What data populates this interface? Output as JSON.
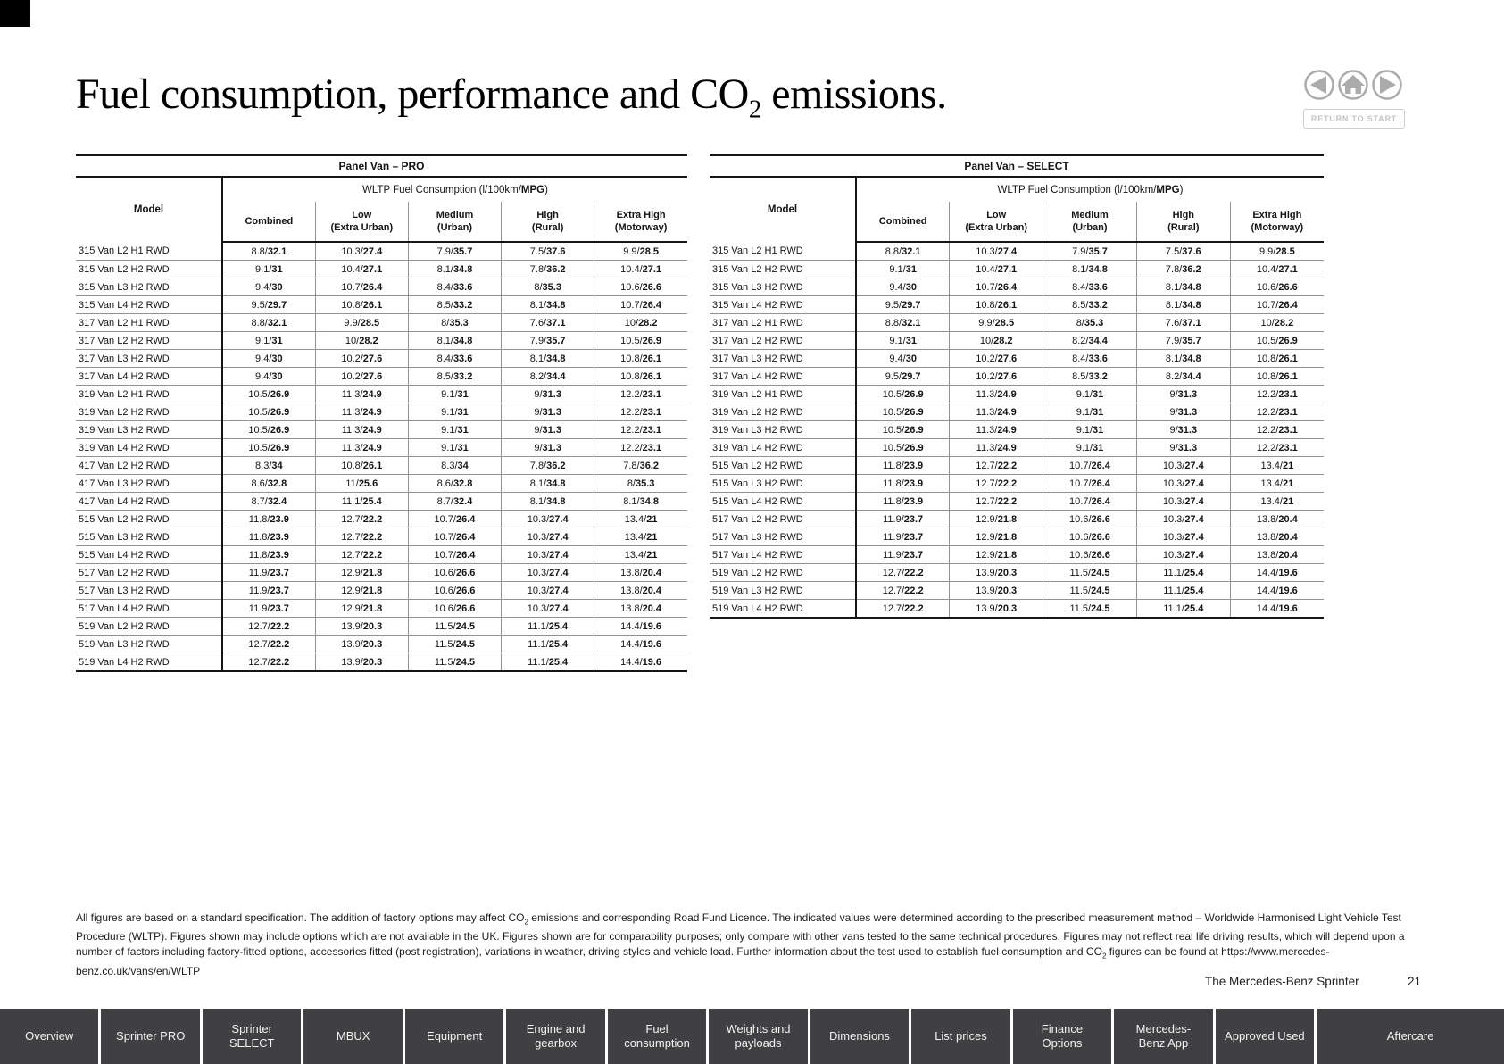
{
  "header": {
    "title": {
      "pre": "Fuel consumption, performance and CO",
      "sub": "2",
      "post": " emissions."
    }
  },
  "nav": {
    "buttons": [
      {
        "label": "back",
        "icon": "back-icon"
      },
      {
        "label": "home",
        "icon": "home-icon"
      },
      {
        "label": "forward",
        "icon": "forward-icon"
      }
    ],
    "return_button": "RETURN TO START",
    "icon_color": "#ababab"
  },
  "tables": [
    {
      "id": "pro",
      "title": "Panel Van – PRO",
      "group_header": {
        "pre": "WLTP Fuel Consumption (l/100km/",
        "bold": "MPG",
        "post": ")"
      },
      "columns": {
        "model": "Model",
        "values": [
          [
            "Combined"
          ],
          [
            "Low",
            "(Extra Urban)"
          ],
          [
            "Medium",
            "(Urban)"
          ],
          [
            "High",
            "(Rural)"
          ],
          [
            "Extra High",
            "(Motorway)"
          ]
        ]
      },
      "rows": [
        {
          "model": "315 Van L2 H1 RWD",
          "values": [
            "8.8/32.1",
            "10.3/27.4",
            "7.9/35.7",
            "7.5/37.6",
            "9.9/28.5"
          ]
        },
        {
          "model": "315 Van L2 H2 RWD",
          "values": [
            "9.1/31",
            "10.4/27.1",
            "8.1/34.8",
            "7.8/36.2",
            "10.4/27.1"
          ]
        },
        {
          "model": "315 Van L3 H2 RWD",
          "values": [
            "9.4/30",
            "10.7/26.4",
            "8.4/33.6",
            "8/35.3",
            "10.6/26.6"
          ]
        },
        {
          "model": "315 Van L4 H2 RWD",
          "values": [
            "9.5/29.7",
            "10.8/26.1",
            "8.5/33.2",
            "8.1/34.8",
            "10.7/26.4"
          ]
        },
        {
          "model": "317 Van L2 H1 RWD",
          "values": [
            "8.8/32.1",
            "9.9/28.5",
            "8/35.3",
            "7.6/37.1",
            "10/28.2"
          ]
        },
        {
          "model": "317 Van L2 H2 RWD",
          "values": [
            "9.1/31",
            "10/28.2",
            "8.1/34.8",
            "7.9/35.7",
            "10.5/26.9"
          ]
        },
        {
          "model": "317 Van L3 H2 RWD",
          "values": [
            "9.4/30",
            "10.2/27.6",
            "8.4/33.6",
            "8.1/34.8",
            "10.8/26.1"
          ]
        },
        {
          "model": "317 Van L4 H2 RWD",
          "values": [
            "9.4/30",
            "10.2/27.6",
            "8.5/33.2",
            "8.2/34.4",
            "10.8/26.1"
          ]
        },
        {
          "model": "319 Van L2 H1 RWD",
          "values": [
            "10.5/26.9",
            "11.3/24.9",
            "9.1/31",
            "9/31.3",
            "12.2/23.1"
          ]
        },
        {
          "model": "319 Van L2 H2 RWD",
          "values": [
            "10.5/26.9",
            "11.3/24.9",
            "9.1/31",
            "9/31.3",
            "12.2/23.1"
          ]
        },
        {
          "model": "319 Van L3 H2 RWD",
          "values": [
            "10.5/26.9",
            "11.3/24.9",
            "9.1/31",
            "9/31.3",
            "12.2/23.1"
          ]
        },
        {
          "model": "319 Van L4 H2 RWD",
          "values": [
            "10.5/26.9",
            "11.3/24.9",
            "9.1/31",
            "9/31.3",
            "12.2/23.1"
          ]
        },
        {
          "model": "417 Van L2 H2 RWD",
          "values": [
            "8.3/34",
            "10.8/26.1",
            "8.3/34",
            "7.8/36.2",
            "7.8/36.2"
          ]
        },
        {
          "model": "417 Van L3 H2 RWD",
          "values": [
            "8.6/32.8",
            "11/25.6",
            "8.6/32.8",
            "8.1/34.8",
            "8/35.3"
          ]
        },
        {
          "model": "417 Van L4 H2 RWD",
          "values": [
            "8.7/32.4",
            "11.1/25.4",
            "8.7/32.4",
            "8.1/34.8",
            "8.1/34.8"
          ]
        },
        {
          "model": "515 Van L2 H2 RWD",
          "values": [
            "11.8/23.9",
            "12.7/22.2",
            "10.7/26.4",
            "10.3/27.4",
            "13.4/21"
          ]
        },
        {
          "model": "515 Van L3 H2 RWD",
          "values": [
            "11.8/23.9",
            "12.7/22.2",
            "10.7/26.4",
            "10.3/27.4",
            "13.4/21"
          ]
        },
        {
          "model": "515 Van L4 H2 RWD",
          "values": [
            "11.8/23.9",
            "12.7/22.2",
            "10.7/26.4",
            "10.3/27.4",
            "13.4/21"
          ]
        },
        {
          "model": "517 Van L2 H2 RWD",
          "values": [
            "11.9/23.7",
            "12.9/21.8",
            "10.6/26.6",
            "10.3/27.4",
            "13.8/20.4"
          ]
        },
        {
          "model": "517 Van L3 H2 RWD",
          "values": [
            "11.9/23.7",
            "12.9/21.8",
            "10.6/26.6",
            "10.3/27.4",
            "13.8/20.4"
          ]
        },
        {
          "model": "517 Van L4 H2 RWD",
          "values": [
            "11.9/23.7",
            "12.9/21.8",
            "10.6/26.6",
            "10.3/27.4",
            "13.8/20.4"
          ]
        },
        {
          "model": "519 Van L2 H2 RWD",
          "values": [
            "12.7/22.2",
            "13.9/20.3",
            "11.5/24.5",
            "11.1/25.4",
            "14.4/19.6"
          ]
        },
        {
          "model": "519 Van L3 H2 RWD",
          "values": [
            "12.7/22.2",
            "13.9/20.3",
            "11.5/24.5",
            "11.1/25.4",
            "14.4/19.6"
          ]
        },
        {
          "model": "519 Van L4 H2 RWD",
          "values": [
            "12.7/22.2",
            "13.9/20.3",
            "11.5/24.5",
            "11.1/25.4",
            "14.4/19.6"
          ]
        }
      ]
    },
    {
      "id": "select",
      "title": "Panel Van – SELECT",
      "group_header": {
        "pre": "WLTP Fuel Consumption (l/100km/",
        "bold": "MPG",
        "post": ")"
      },
      "columns": {
        "model": "Model",
        "values": [
          [
            "Combined"
          ],
          [
            "Low",
            "(Extra Urban)"
          ],
          [
            "Medium",
            "(Urban)"
          ],
          [
            "High",
            "(Rural)"
          ],
          [
            "Extra High",
            "(Motorway)"
          ]
        ]
      },
      "rows": [
        {
          "model": "315 Van L2 H1 RWD",
          "values": [
            "8.8/32.1",
            "10.3/27.4",
            "7.9/35.7",
            "7.5/37.6",
            "9.9/28.5"
          ]
        },
        {
          "model": "315 Van L2 H2 RWD",
          "values": [
            "9.1/31",
            "10.4/27.1",
            "8.1/34.8",
            "7.8/36.2",
            "10.4/27.1"
          ]
        },
        {
          "model": "315 Van L3 H2 RWD",
          "values": [
            "9.4/30",
            "10.7/26.4",
            "8.4/33.6",
            "8.1/34.8",
            "10.6/26.6"
          ]
        },
        {
          "model": "315 Van L4 H2 RWD",
          "values": [
            "9.5/29.7",
            "10.8/26.1",
            "8.5/33.2",
            "8.1/34.8",
            "10.7/26.4"
          ]
        },
        {
          "model": "317 Van L2 H1 RWD",
          "values": [
            "8.8/32.1",
            "9.9/28.5",
            "8/35.3",
            "7.6/37.1",
            "10/28.2"
          ]
        },
        {
          "model": "317 Van L2 H2 RWD",
          "values": [
            "9.1/31",
            "10/28.2",
            "8.2/34.4",
            "7.9/35.7",
            "10.5/26.9"
          ]
        },
        {
          "model": "317 Van L3 H2 RWD",
          "values": [
            "9.4/30",
            "10.2/27.6",
            "8.4/33.6",
            "8.1/34.8",
            "10.8/26.1"
          ]
        },
        {
          "model": "317 Van L4 H2 RWD",
          "values": [
            "9.5/29.7",
            "10.2/27.6",
            "8.5/33.2",
            "8.2/34.4",
            "10.8/26.1"
          ]
        },
        {
          "model": "319 Van L2 H1 RWD",
          "values": [
            "10.5/26.9",
            "11.3/24.9",
            "9.1/31",
            "9/31.3",
            "12.2/23.1"
          ]
        },
        {
          "model": "319 Van L2 H2 RWD",
          "values": [
            "10.5/26.9",
            "11.3/24.9",
            "9.1/31",
            "9/31.3",
            "12.2/23.1"
          ]
        },
        {
          "model": "319 Van L3 H2 RWD",
          "values": [
            "10.5/26.9",
            "11.3/24.9",
            "9.1/31",
            "9/31.3",
            "12.2/23.1"
          ]
        },
        {
          "model": "319 Van L4 H2 RWD",
          "values": [
            "10.5/26.9",
            "11.3/24.9",
            "9.1/31",
            "9/31.3",
            "12.2/23.1"
          ]
        },
        {
          "model": "515 Van L2 H2 RWD",
          "values": [
            "11.8/23.9",
            "12.7/22.2",
            "10.7/26.4",
            "10.3/27.4",
            "13.4/21"
          ]
        },
        {
          "model": "515 Van L3 H2 RWD",
          "values": [
            "11.8/23.9",
            "12.7/22.2",
            "10.7/26.4",
            "10.3/27.4",
            "13.4/21"
          ]
        },
        {
          "model": "515 Van L4 H2 RWD",
          "values": [
            "11.8/23.9",
            "12.7/22.2",
            "10.7/26.4",
            "10.3/27.4",
            "13.4/21"
          ]
        },
        {
          "model": "517 Van L2 H2 RWD",
          "values": [
            "11.9/23.7",
            "12.9/21.8",
            "10.6/26.6",
            "10.3/27.4",
            "13.8/20.4"
          ]
        },
        {
          "model": "517 Van L3 H2 RWD",
          "values": [
            "11.9/23.7",
            "12.9/21.8",
            "10.6/26.6",
            "10.3/27.4",
            "13.8/20.4"
          ]
        },
        {
          "model": "517 Van L4 H2 RWD",
          "values": [
            "11.9/23.7",
            "12.9/21.8",
            "10.6/26.6",
            "10.3/27.4",
            "13.8/20.4"
          ]
        },
        {
          "model": "519 Van L2 H2 RWD",
          "values": [
            "12.7/22.2",
            "13.9/20.3",
            "11.5/24.5",
            "11.1/25.4",
            "14.4/19.6"
          ]
        },
        {
          "model": "519 Van L3 H2 RWD",
          "values": [
            "12.7/22.2",
            "13.9/20.3",
            "11.5/24.5",
            "11.1/25.4",
            "14.4/19.6"
          ]
        },
        {
          "model": "519 Van L4 H2 RWD",
          "values": [
            "12.7/22.2",
            "13.9/20.3",
            "11.5/24.5",
            "11.1/25.4",
            "14.4/19.6"
          ]
        }
      ]
    }
  ],
  "footnote": {
    "segments": [
      {
        "t": "All figures are based on a standard specification. The addition of factory options may affect CO"
      },
      {
        "sub": "2"
      },
      {
        "t": " emissions and corresponding Road Fund Licence. The indicated values were determined according to the prescribed measurement method – Worldwide Harmonised Light Vehicle Test Procedure (WLTP). Figures shown may include options which are not available in the UK. Figures shown are for comparability purposes; only compare with other vans tested to the same technical procedures. Figures may not reflect real life driving results, which will depend upon a number of factors including factory-fitted options, accessories fitted (post registration), variations in weather, driving styles and vehicle load. Further information about the test used to establish fuel consumption and CO"
      },
      {
        "sub": "2"
      },
      {
        "t": " figures can be found at https://www.mercedes-benz.co.uk/vans/en/WLTP"
      }
    ]
  },
  "footer": {
    "brand": "The Mercedes-Benz Sprinter",
    "page_number": "21"
  },
  "bottom_nav": {
    "tab_background": "#404042",
    "tabs": [
      {
        "label": "Overview"
      },
      {
        "label": "Sprinter PRO"
      },
      {
        "label": "Sprinter SELECT"
      },
      {
        "label": "MBUX"
      },
      {
        "label": "Equipment"
      },
      {
        "label": "Engine and gearbox"
      },
      {
        "label": "Fuel consumption"
      },
      {
        "label": "Weights and payloads"
      },
      {
        "label": "Dimensions"
      },
      {
        "label": "List prices"
      },
      {
        "label": "Finance Options"
      },
      {
        "label": "Mercedes-Benz App"
      },
      {
        "label": "Approved Used"
      },
      {
        "label": "Aftercare"
      }
    ]
  }
}
